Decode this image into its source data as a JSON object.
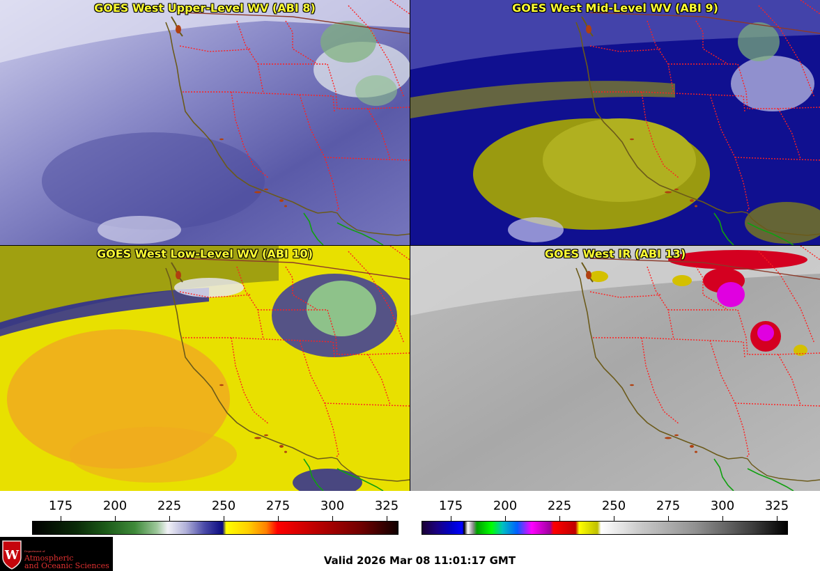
{
  "panels": [
    {
      "title": "GOES West Upper-Level WV (ABI 8)"
    },
    {
      "title": "GOES West Mid-Level WV (ABI 9)"
    },
    {
      "title": "GOES West Low-Level WV (ABI 10)"
    },
    {
      "title": "GOES West IR (ABI 13)"
    }
  ],
  "colorbars": {
    "wv": {
      "ticks": [
        "175",
        "200",
        "225",
        "250",
        "275",
        "300",
        "325"
      ]
    },
    "ir": {
      "ticks": [
        "175",
        "200",
        "225",
        "250",
        "275",
        "300",
        "325"
      ]
    }
  },
  "logo": {
    "dept": "Department of",
    "line1": "Atmospheric",
    "line2": "and Oceanic Sciences"
  },
  "valid_time": "Valid 2026 Mar 08 11:01:17 GMT",
  "colors": {
    "state_border": "#ff2020",
    "coastline": "#6b5a1a",
    "intl_border": "#8b3a2a",
    "mexico_border": "#10a010",
    "title_text": "#ffff33"
  }
}
